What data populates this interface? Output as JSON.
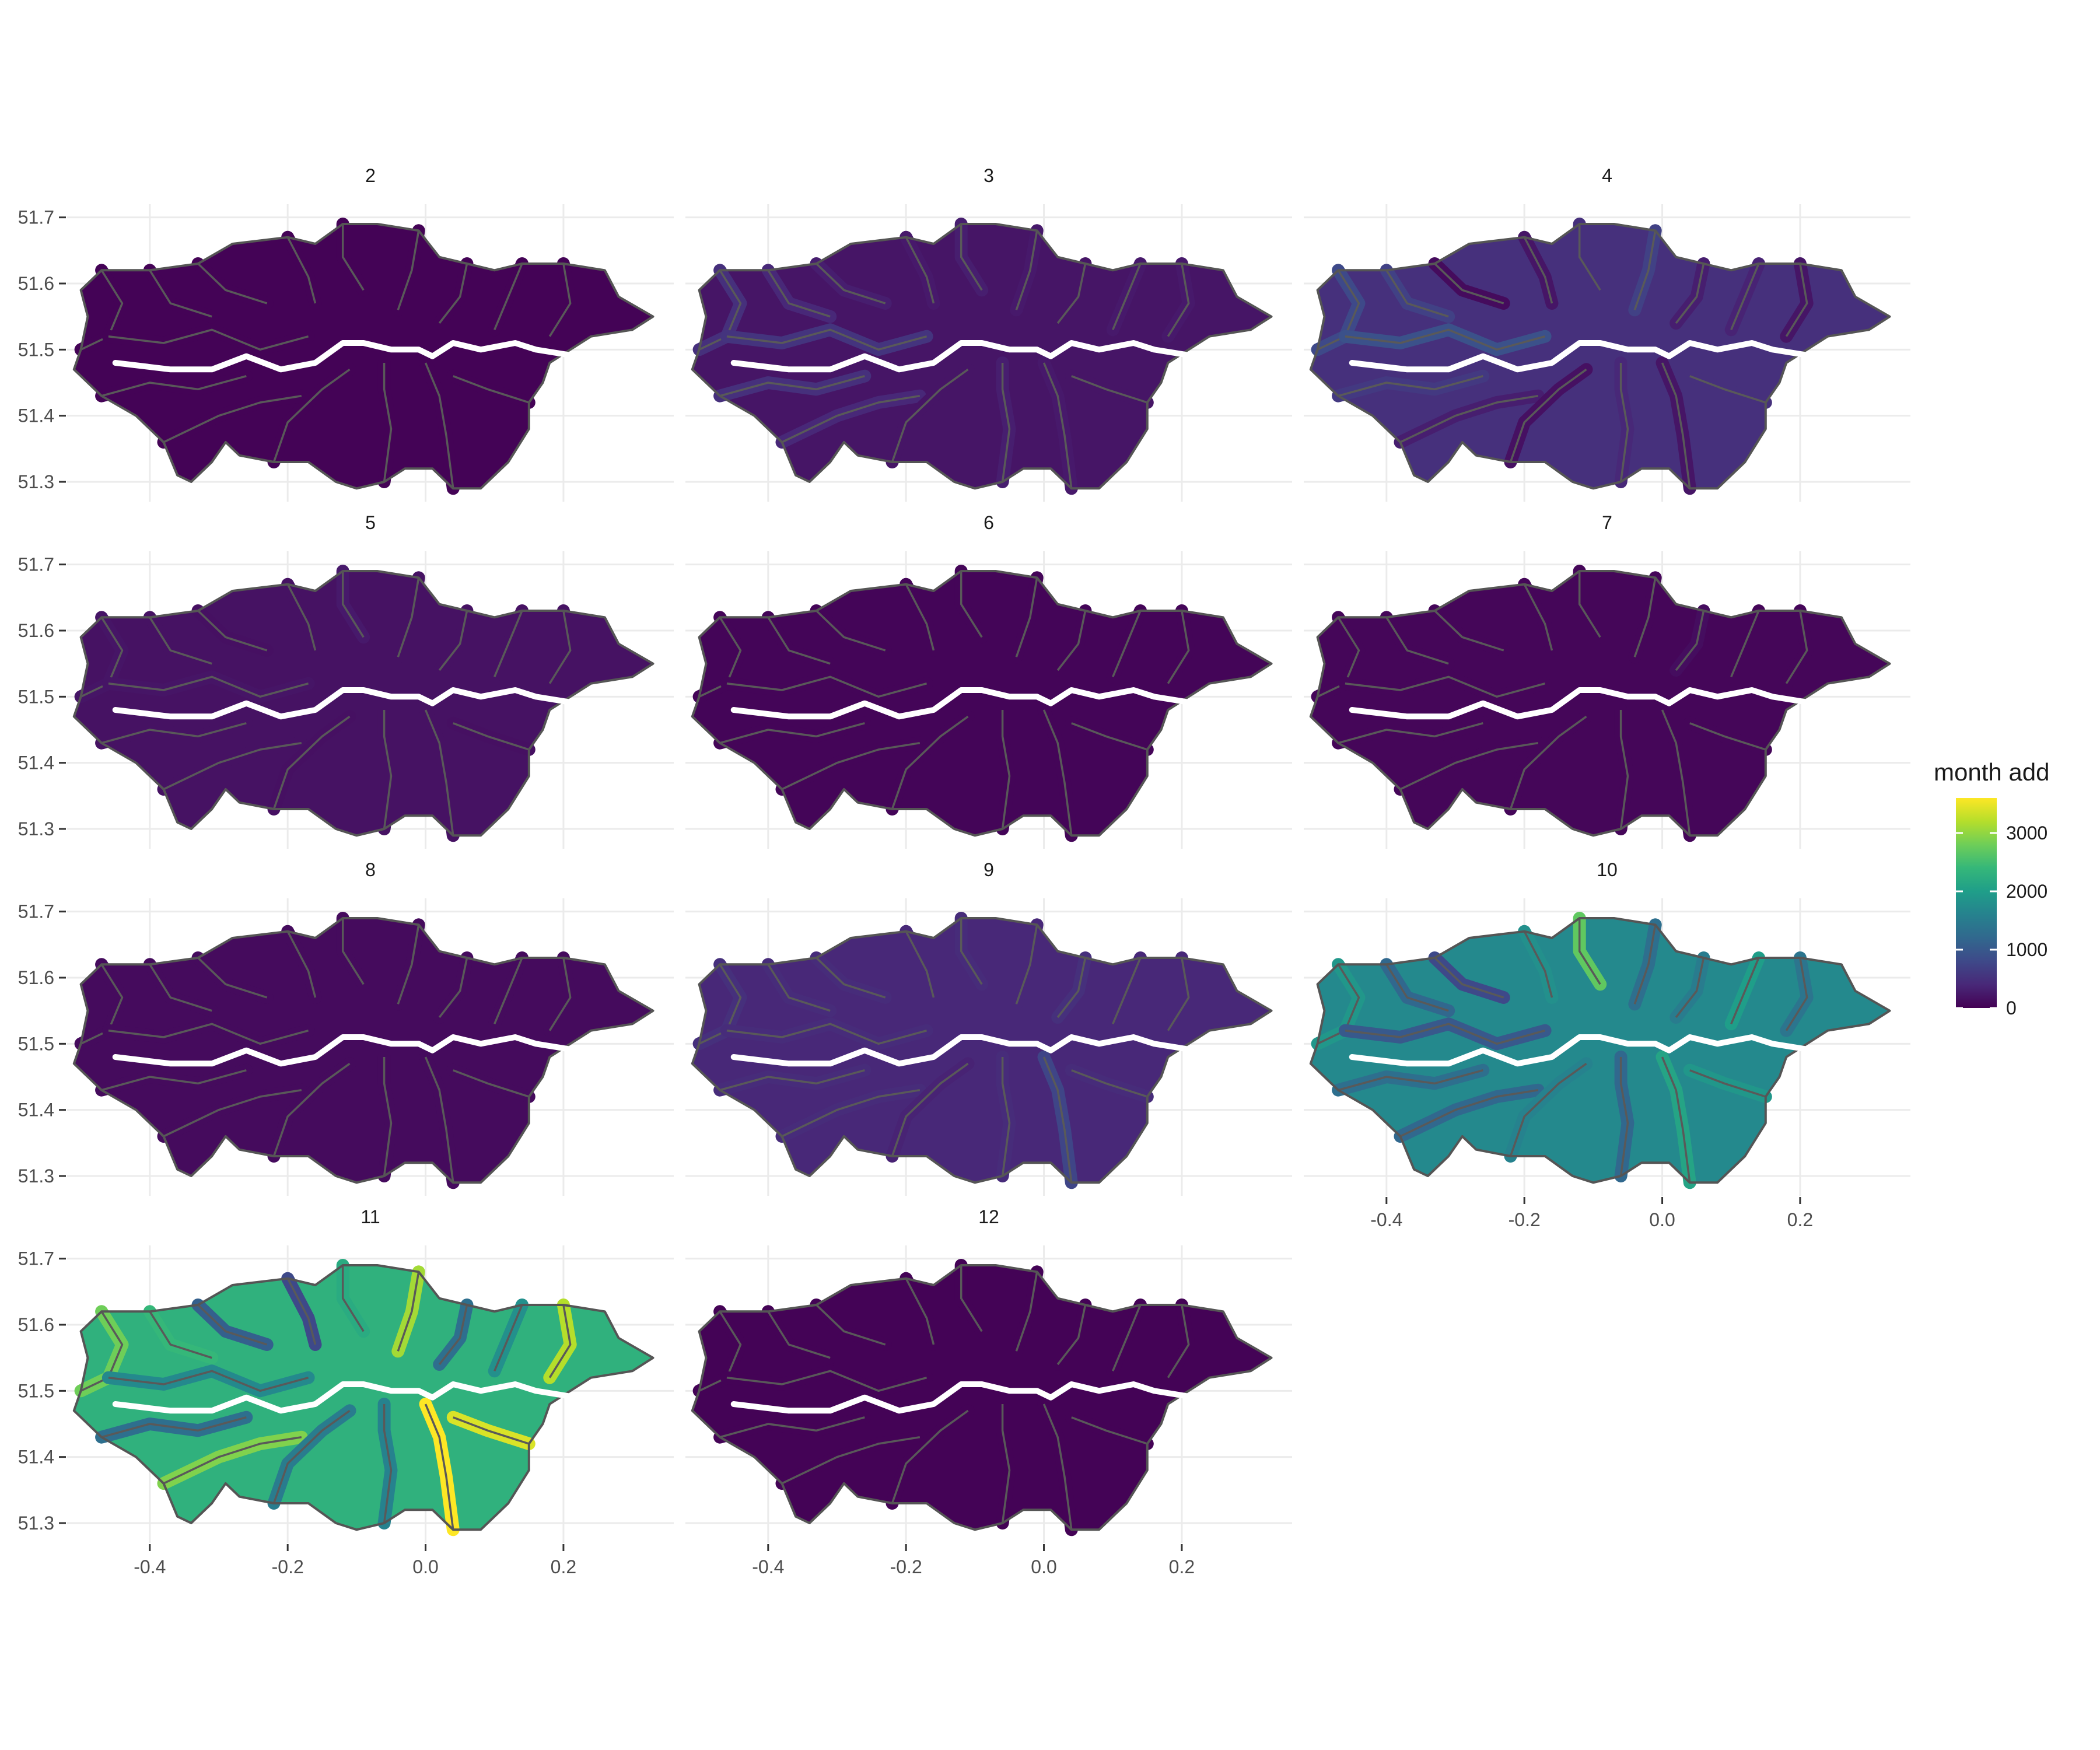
{
  "chart_data": {
    "type": "choropleth-facets",
    "fill_variable": "month add",
    "x_ticks": [
      "-0.4",
      "-0.2",
      "0.0",
      "0.2"
    ],
    "y_ticks": [
      "51.3",
      "51.4",
      "51.5",
      "51.6",
      "51.7"
    ],
    "xlim": [
      -0.52,
      0.36
    ],
    "ylim": [
      51.27,
      51.72
    ],
    "grid": true,
    "color_scale": {
      "name": "viridis",
      "min": 0,
      "max": 3600,
      "stops": [
        "#440154",
        "#482878",
        "#3e4989",
        "#31688e",
        "#26828e",
        "#1f9e89",
        "#35b779",
        "#6ece58",
        "#b5de2b",
        "#fde725"
      ]
    },
    "legend": {
      "title": "month add",
      "position": "right",
      "ticks": [
        {
          "value": 0,
          "label": "0"
        },
        {
          "value": 1000,
          "label": "1000"
        },
        {
          "value": 2000,
          "label": "2000"
        },
        {
          "value": 3000,
          "label": "3000"
        }
      ]
    },
    "facets": [
      {
        "label": "2",
        "outer": 20,
        "inner": [
          20,
          20,
          20,
          20,
          20,
          20,
          20,
          20,
          20,
          20,
          20,
          20,
          20,
          20,
          20,
          20
        ]
      },
      {
        "label": "3",
        "outer": 200,
        "inner": [
          500,
          400,
          300,
          250,
          300,
          250,
          200,
          250,
          250,
          550,
          500,
          400,
          200,
          300,
          250,
          200
        ]
      },
      {
        "label": "4",
        "outer": 500,
        "inner": [
          800,
          700,
          100,
          200,
          500,
          700,
          300,
          350,
          200,
          900,
          600,
          300,
          150,
          400,
          200,
          500
        ]
      },
      {
        "label": "5",
        "outer": 170,
        "inner": [
          200,
          170,
          150,
          170,
          250,
          170,
          170,
          170,
          170,
          200,
          170,
          170,
          150,
          170,
          170,
          150
        ]
      },
      {
        "label": "6",
        "outer": 40,
        "inner": [
          40,
          40,
          40,
          40,
          40,
          40,
          40,
          40,
          40,
          40,
          40,
          40,
          40,
          40,
          40,
          40
        ]
      },
      {
        "label": "7",
        "outer": 50,
        "inner": [
          50,
          50,
          50,
          50,
          50,
          50,
          120,
          50,
          50,
          50,
          50,
          50,
          50,
          50,
          50,
          50
        ]
      },
      {
        "label": "8",
        "outer": 100,
        "inner": [
          100,
          100,
          100,
          100,
          100,
          100,
          100,
          100,
          100,
          100,
          100,
          100,
          100,
          100,
          100,
          100
        ]
      },
      {
        "label": "9",
        "outer": 400,
        "inner": [
          500,
          450,
          450,
          400,
          450,
          400,
          500,
          400,
          400,
          450,
          450,
          450,
          350,
          450,
          750,
          450
        ]
      },
      {
        "label": "10",
        "outer": 1700,
        "inner": [
          1900,
          1200,
          800,
          1800,
          2700,
          1300,
          1500,
          2000,
          1400,
          1000,
          1300,
          1200,
          1600,
          1200,
          2100,
          1900
        ]
      },
      {
        "label": "11",
        "outer": 2300,
        "inner": [
          2800,
          2400,
          1100,
          800,
          2200,
          3100,
          1300,
          1800,
          3200,
          1700,
          1300,
          2900,
          1500,
          1600,
          3600,
          3400
        ]
      },
      {
        "label": "12",
        "outer": 20,
        "inner": [
          20,
          20,
          20,
          20,
          20,
          20,
          20,
          20,
          20,
          20,
          20,
          20,
          20,
          20,
          20,
          20
        ]
      }
    ]
  }
}
